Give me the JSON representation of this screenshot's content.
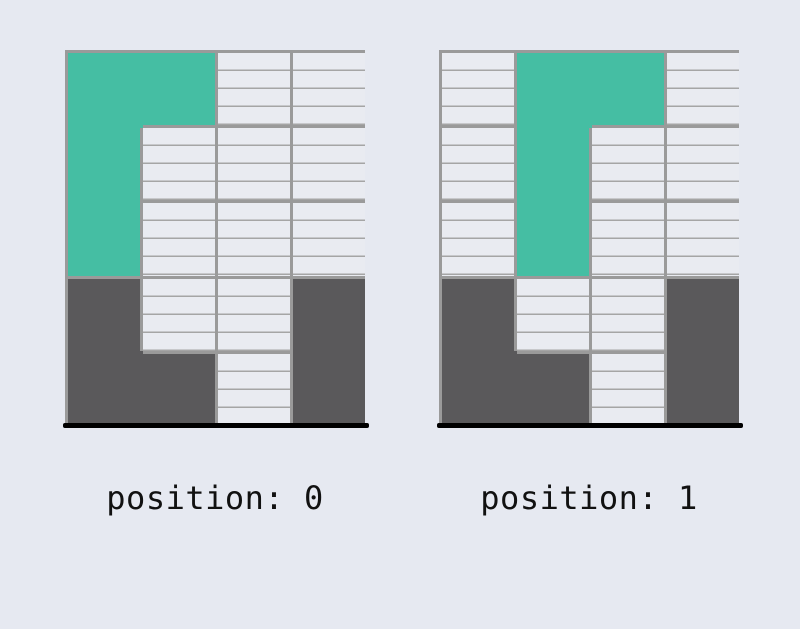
{
  "colors": {
    "background": "#e6e9f1",
    "empty_cell": "#e9ebf1",
    "grid_line": "#9a9a9a",
    "falling_piece": "#45bea3",
    "settled_block": "#5a595b",
    "floor": "#000000"
  },
  "boards": [
    {
      "caption": "position: 0",
      "columns": 4,
      "rows": 5,
      "cells": [
        [
          "teal",
          "teal",
          "empty",
          "empty"
        ],
        [
          "teal",
          "empty",
          "empty",
          "empty"
        ],
        [
          "teal",
          "empty",
          "empty",
          "empty"
        ],
        [
          "dark",
          "empty",
          "empty",
          "dark"
        ],
        [
          "dark",
          "dark",
          "empty",
          "dark"
        ]
      ]
    },
    {
      "caption": "position: 1",
      "columns": 4,
      "rows": 5,
      "cells": [
        [
          "empty",
          "teal",
          "teal",
          "empty"
        ],
        [
          "empty",
          "teal",
          "empty",
          "empty"
        ],
        [
          "empty",
          "teal",
          "empty",
          "empty"
        ],
        [
          "dark",
          "empty",
          "empty",
          "dark"
        ],
        [
          "dark",
          "dark",
          "empty",
          "dark"
        ]
      ]
    }
  ]
}
